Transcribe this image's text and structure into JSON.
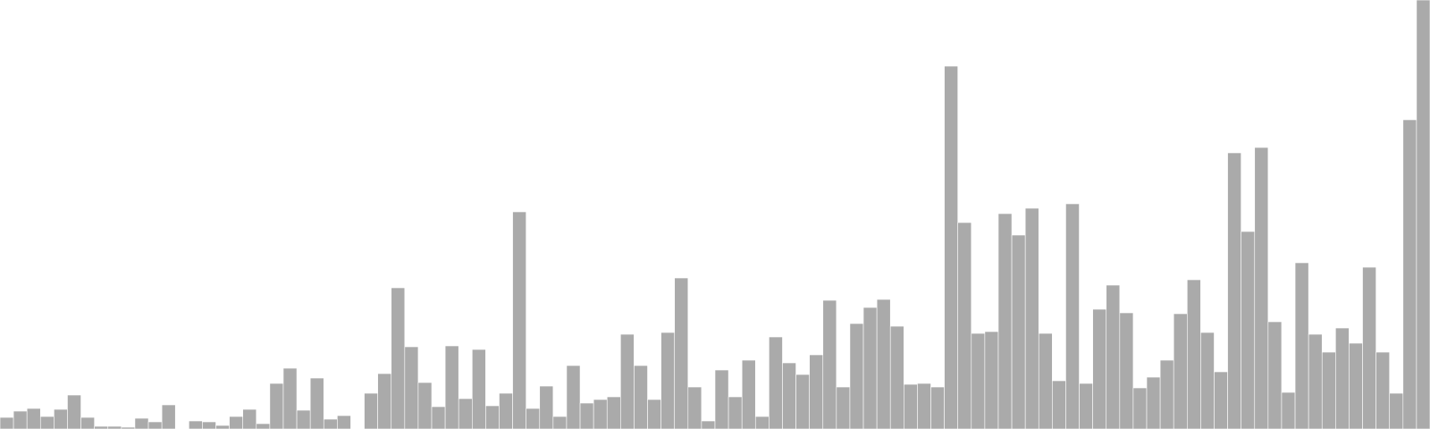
{
  "chart_data": {
    "type": "bar",
    "title": "",
    "xlabel": "",
    "ylabel": "",
    "ylim": [
      0,
      480
    ],
    "grid": false,
    "legend": "none",
    "bar_color": "#aaaaaa",
    "bar_edge_color": "#ffffff",
    "background": "#ffffff",
    "values": [
      13,
      20,
      23,
      14,
      22,
      38,
      13,
      3,
      3,
      2,
      12,
      8,
      27,
      0,
      9,
      8,
      4,
      14,
      22,
      6,
      51,
      68,
      21,
      57,
      11,
      15,
      0,
      40,
      62,
      158,
      92,
      52,
      25,
      93,
      34,
      89,
      26,
      40,
      243,
      23,
      48,
      14,
      71,
      29,
      33,
      36,
      106,
      71,
      33,
      108,
      169,
      47,
      9,
      66,
      36,
      77,
      14,
      103,
      74,
      61,
      83,
      144,
      47,
      118,
      136,
      145,
      115,
      50,
      51,
      47,
      406,
      231,
      107,
      109,
      241,
      217,
      247,
      107,
      54,
      252,
      51,
      134,
      161,
      130,
      46,
      58,
      77,
      129,
      167,
      108,
      64,
      309,
      221,
      315,
      120,
      41,
      186,
      106,
      86,
      113,
      96,
      181,
      86,
      40,
      346,
      480
    ]
  }
}
